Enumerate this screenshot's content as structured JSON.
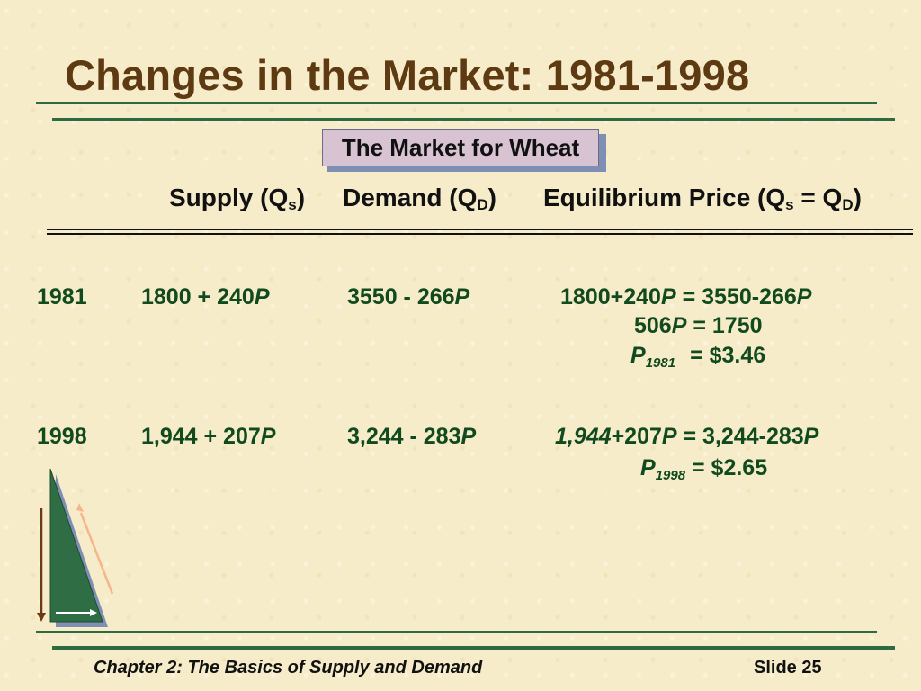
{
  "slide": {
    "title": "Changes in the Market: 1981-1998",
    "box_label": "The Market for Wheat"
  },
  "headers": {
    "supply_prefix": "Supply (Q",
    "supply_sub": "s",
    "supply_suffix": ")",
    "demand_prefix": "Demand (Q",
    "demand_sub": "D",
    "demand_suffix": ")",
    "eq_prefix": "Equilibrium Price (Q",
    "eq_sub1": "s",
    "eq_mid": " = Q",
    "eq_sub2": "D",
    "eq_suffix": ")"
  },
  "rows": {
    "r1981": {
      "year": "1981",
      "supply_num": "1800 + 240",
      "supply_var": "P",
      "demand_num": "3550 - 266",
      "demand_var": "P",
      "eq1_left": "1800+240",
      "eq1_var1": "P",
      "eq1_right": " = 3550-266",
      "eq1_var2": "P",
      "eq2_left": "506",
      "eq2_var": "P",
      "eq2_right": " = 1750",
      "eq3_var": "P",
      "eq3_sub": "1981",
      "eq3_right": "= $3.46"
    },
    "r1998": {
      "year": "1998",
      "supply_num": "1,944 + 207",
      "supply_var": "P",
      "demand_num": "3,244 - 283",
      "demand_var": "P",
      "eq1_left_italic": "1,944",
      "eq1_left": "+207",
      "eq1_var1": "P",
      "eq1_right": " = 3,244-283",
      "eq1_var2": "P",
      "eq2_var": "P",
      "eq2_sub": "1998",
      "eq2_right": " = $2.65"
    }
  },
  "footer": {
    "chapter": "Chapter 2: The Basics of Supply and Demand",
    "slide_number": "Slide 25"
  },
  "colors": {
    "title": "#5e3a12",
    "rules": "#2e6b40",
    "body_text": "#114a1e",
    "box_fill": "#d8c3d3"
  }
}
